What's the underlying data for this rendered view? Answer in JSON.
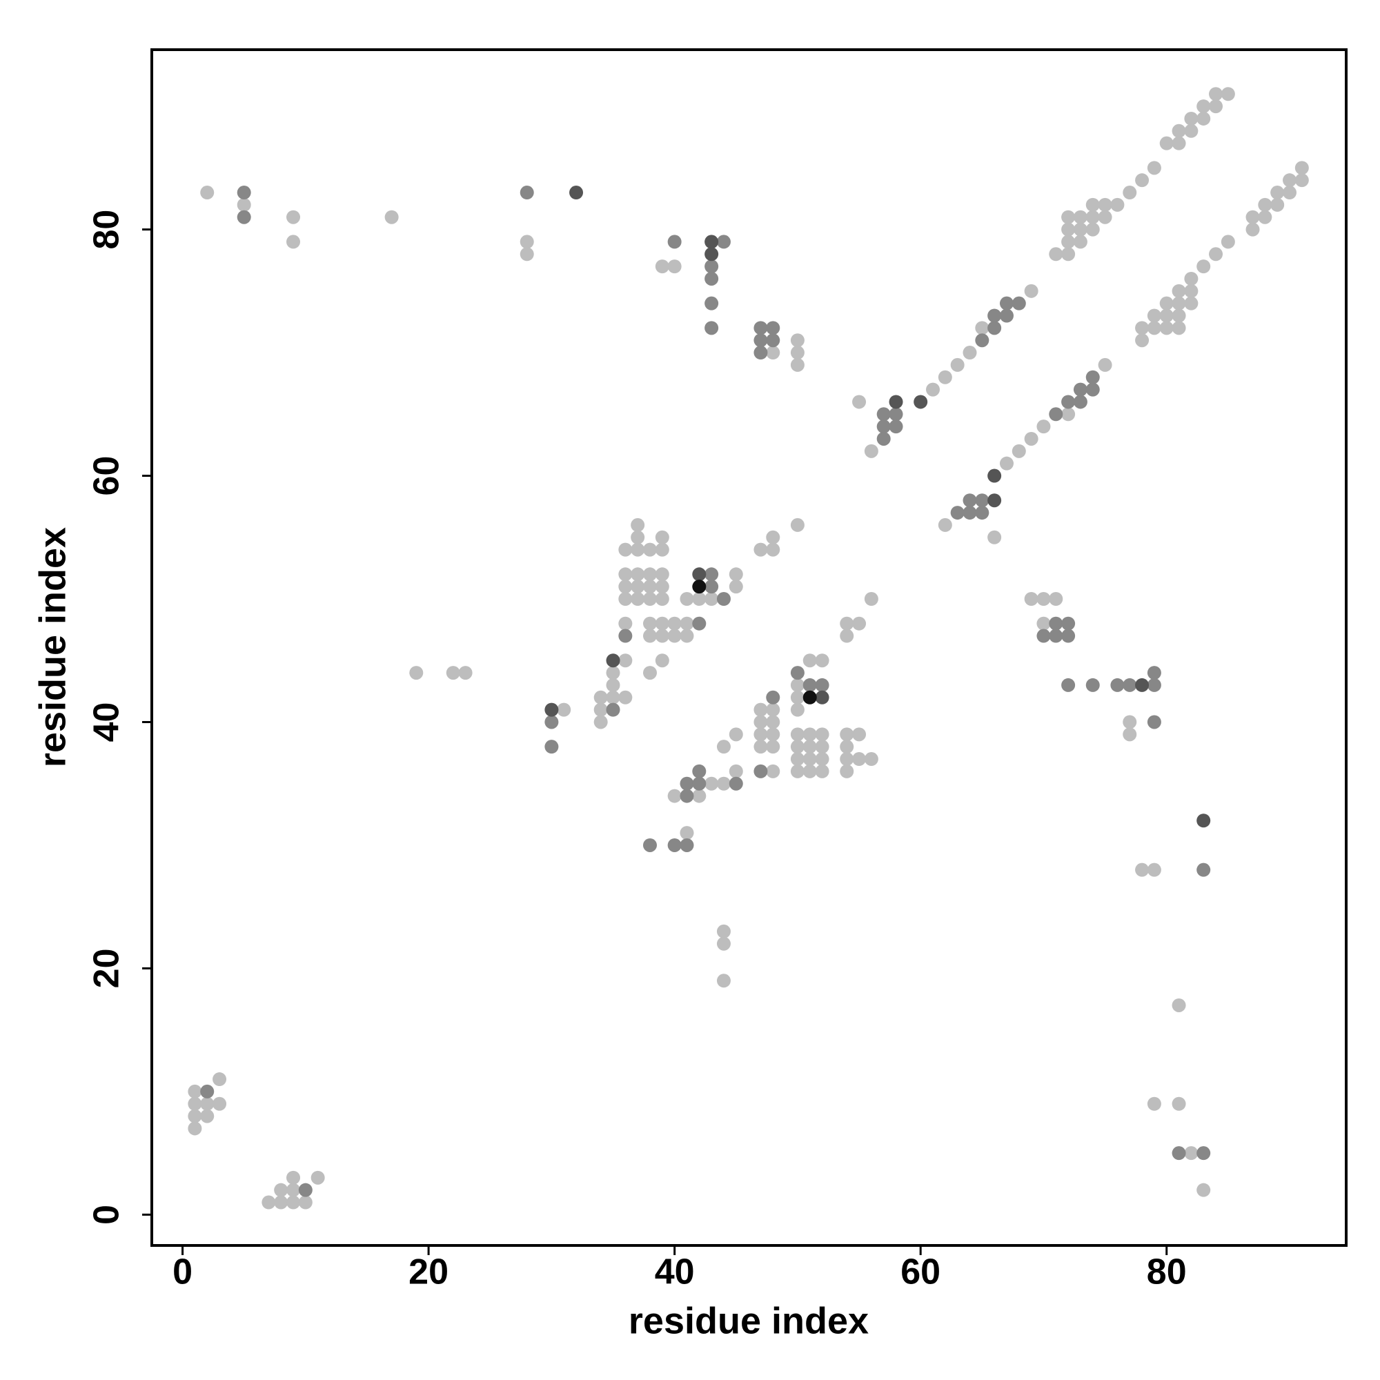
{
  "chart_data": {
    "type": "scatter",
    "xlabel": "residue index",
    "ylabel": "residue index",
    "xlim": [
      -2.5,
      94.6
    ],
    "ylim": [
      -2.5,
      94.6
    ],
    "xticks": [
      0,
      20,
      40,
      60,
      80
    ],
    "yticks": [
      0,
      20,
      40,
      60,
      80
    ],
    "grid": false,
    "series": [
      {
        "color": "#bdbdbd",
        "x": [
          2,
          5,
          9,
          9,
          17,
          28,
          28,
          39,
          40,
          48,
          50,
          50,
          50,
          55,
          56,
          61,
          62,
          63,
          64,
          65,
          69,
          71,
          72,
          72,
          73,
          72,
          73,
          74,
          72,
          73,
          74,
          75,
          74,
          75,
          76,
          77,
          78,
          79,
          80,
          81,
          81,
          82,
          82,
          83,
          83,
          84,
          84,
          85,
          62,
          66,
          67,
          68,
          69,
          70,
          72,
          75,
          78,
          78,
          79,
          79,
          80,
          80,
          80,
          81,
          81,
          81,
          81,
          82,
          82,
          82,
          83,
          84,
          85,
          87,
          87,
          88,
          88,
          89,
          89,
          90,
          90,
          91,
          91,
          37,
          37,
          36,
          37,
          38,
          39,
          39,
          36,
          37,
          38,
          39,
          36,
          37,
          38,
          39,
          36,
          37,
          38,
          39,
          36,
          36,
          35,
          35,
          34,
          35,
          36,
          34,
          34,
          38,
          39,
          40,
          41,
          38,
          39,
          40,
          41,
          39,
          38,
          41,
          42,
          43,
          45,
          45,
          47,
          48,
          48,
          50,
          31,
          19,
          22,
          23,
          51,
          52,
          50,
          50,
          50,
          47,
          48,
          47,
          48,
          47,
          48,
          47,
          48,
          50,
          51,
          52,
          50,
          51,
          52,
          50,
          51,
          52,
          50,
          51,
          52,
          54,
          55,
          54,
          54,
          55,
          56,
          54,
          48,
          45,
          44,
          45,
          43,
          44,
          40,
          42,
          41,
          55,
          54,
          54,
          56,
          44,
          44,
          44,
          69,
          70,
          71,
          70,
          77,
          77,
          78,
          79,
          81,
          79,
          81,
          82,
          83,
          1,
          1,
          2,
          1,
          2,
          3,
          3,
          1,
          7,
          8,
          9,
          10,
          8,
          9,
          9,
          11
        ],
        "values": [
          83,
          82,
          81,
          79,
          81,
          79,
          78,
          77,
          77,
          70,
          71,
          70,
          69,
          66,
          62,
          67,
          68,
          69,
          70,
          72,
          75,
          78,
          78,
          79,
          79,
          80,
          80,
          80,
          81,
          81,
          81,
          81,
          82,
          82,
          82,
          83,
          84,
          85,
          87,
          87,
          88,
          88,
          89,
          89,
          90,
          90,
          91,
          91,
          56,
          55,
          61,
          62,
          63,
          64,
          65,
          69,
          71,
          72,
          72,
          73,
          72,
          73,
          74,
          72,
          73,
          74,
          75,
          74,
          75,
          76,
          77,
          78,
          79,
          80,
          81,
          81,
          82,
          82,
          83,
          83,
          84,
          84,
          85,
          56,
          55,
          54,
          54,
          54,
          55,
          54,
          52,
          52,
          52,
          52,
          51,
          51,
          51,
          51,
          50,
          50,
          50,
          50,
          48,
          45,
          44,
          43,
          42,
          42,
          42,
          41,
          40,
          48,
          48,
          48,
          48,
          47,
          47,
          47,
          47,
          45,
          44,
          50,
          50,
          50,
          52,
          51,
          54,
          54,
          55,
          56,
          41,
          44,
          44,
          44,
          45,
          45,
          43,
          42,
          41,
          41,
          41,
          40,
          40,
          39,
          39,
          38,
          38,
          39,
          39,
          39,
          38,
          38,
          38,
          37,
          37,
          37,
          36,
          36,
          36,
          39,
          39,
          38,
          37,
          37,
          37,
          36,
          36,
          39,
          38,
          36,
          35,
          35,
          34,
          34,
          31,
          48,
          48,
          47,
          50,
          23,
          22,
          19,
          50,
          50,
          50,
          48,
          40,
          39,
          28,
          28,
          17,
          9,
          9,
          5,
          2,
          10,
          9,
          9,
          8,
          8,
          9,
          11,
          7,
          1,
          1,
          1,
          1,
          2,
          2,
          3,
          3
        ]
      },
      {
        "color": "#878787",
        "x": [
          5,
          5,
          28,
          40,
          44,
          43,
          43,
          43,
          43,
          47,
          48,
          47,
          48,
          47,
          57,
          58,
          57,
          58,
          57,
          65,
          66,
          66,
          67,
          67,
          68,
          63,
          64,
          64,
          65,
          65,
          71,
          72,
          73,
          73,
          74,
          74,
          36,
          35,
          42,
          44,
          43,
          43,
          30,
          30,
          50,
          51,
          52,
          48,
          47,
          42,
          45,
          41,
          42,
          41,
          38,
          40,
          41,
          71,
          72,
          70,
          71,
          72,
          72,
          74,
          76,
          77,
          79,
          79,
          79,
          83,
          81,
          83,
          2,
          10
        ],
        "values": [
          83,
          81,
          83,
          79,
          79,
          77,
          76,
          74,
          72,
          72,
          72,
          71,
          71,
          70,
          65,
          65,
          64,
          64,
          63,
          71,
          72,
          73,
          73,
          74,
          74,
          57,
          57,
          58,
          58,
          57,
          65,
          66,
          66,
          67,
          67,
          68,
          47,
          41,
          48,
          50,
          52,
          51,
          40,
          38,
          44,
          43,
          43,
          42,
          36,
          36,
          35,
          35,
          35,
          34,
          30,
          30,
          30,
          48,
          48,
          47,
          47,
          47,
          43,
          43,
          43,
          43,
          43,
          44,
          40,
          28,
          5,
          5,
          10,
          2
        ]
      },
      {
        "color": "#555555",
        "x": [
          32,
          43,
          43,
          58,
          60,
          66,
          66,
          35,
          42,
          30,
          52,
          78,
          83
        ],
        "values": [
          83,
          79,
          78,
          66,
          66,
          58,
          60,
          45,
          52,
          41,
          42,
          43,
          32
        ]
      },
      {
        "color": "#111111",
        "x": [
          42,
          51
        ],
        "values": [
          51,
          42
        ]
      }
    ]
  }
}
